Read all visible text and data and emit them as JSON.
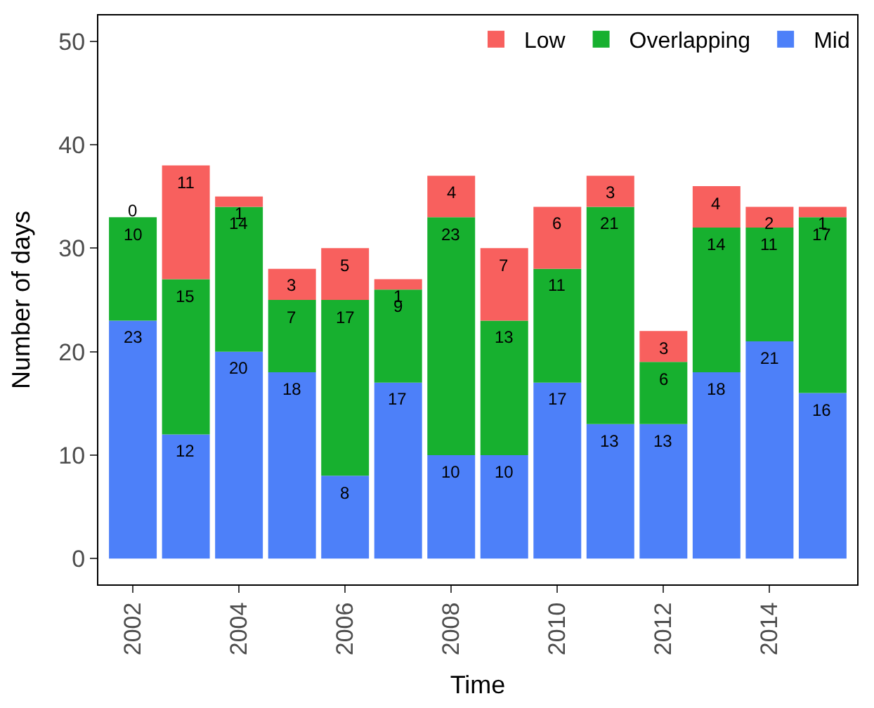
{
  "chart_data": {
    "type": "bar",
    "stacked": true,
    "xlabel": "Time",
    "ylabel": "Number of days",
    "x": [
      2002,
      2003,
      2004,
      2005,
      2006,
      2007,
      2008,
      2009,
      2010,
      2011,
      2012,
      2013,
      2014,
      2015
    ],
    "series": [
      {
        "name": "Mid",
        "color": "#4d80f9",
        "values": [
          23,
          12,
          20,
          18,
          8,
          17,
          10,
          10,
          17,
          13,
          13,
          18,
          21,
          16
        ]
      },
      {
        "name": "Overlapping",
        "color": "#17b02f",
        "values": [
          10,
          15,
          14,
          7,
          17,
          9,
          23,
          13,
          11,
          21,
          6,
          14,
          11,
          17
        ]
      },
      {
        "name": "Low",
        "color": "#f8605e",
        "values": [
          0,
          11,
          1,
          3,
          5,
          1,
          4,
          7,
          6,
          3,
          3,
          4,
          2,
          1
        ]
      }
    ],
    "xlim": [
      2001.35,
      2015.65
    ],
    "xticks": [
      2002,
      2004,
      2006,
      2008,
      2010,
      2012,
      2014
    ],
    "ylim": [
      -2.5,
      52.5
    ],
    "yticks": [
      0,
      10,
      20,
      30,
      40,
      50
    ],
    "data_labels": true,
    "legend": "top right"
  }
}
